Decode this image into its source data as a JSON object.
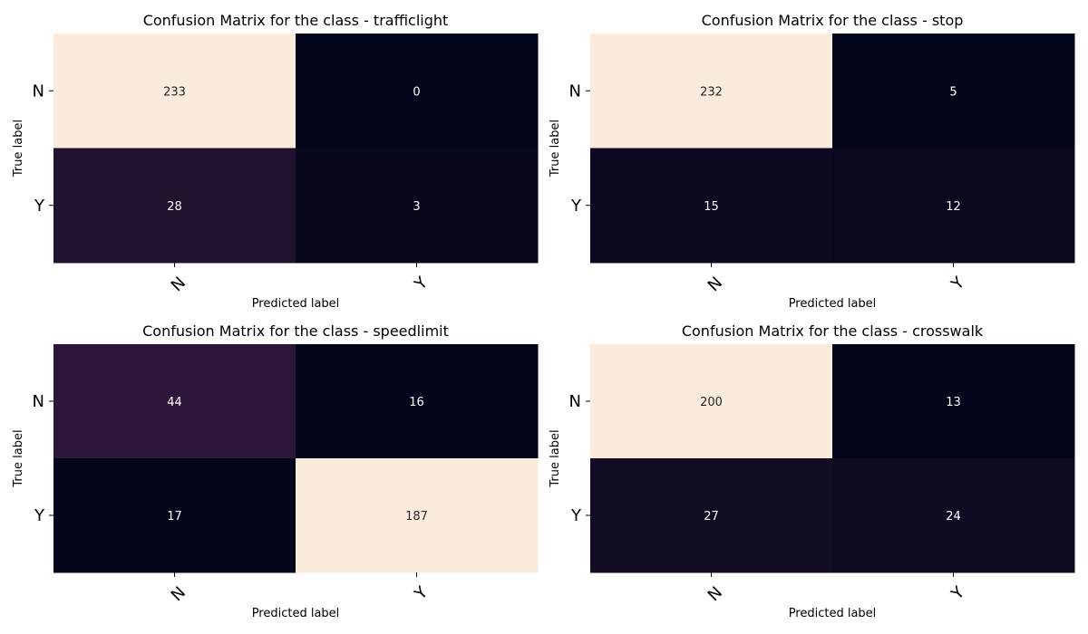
{
  "chart_data": [
    {
      "type": "heatmap",
      "title": "Confusion Matrix for the class - trafficlight",
      "xlabel": "Predicted label",
      "ylabel": "True label",
      "x_categories": [
        "N",
        "Y"
      ],
      "y_categories": [
        "N",
        "Y"
      ],
      "values": [
        [
          233,
          0
        ],
        [
          28,
          3
        ]
      ],
      "colorbar": false
    },
    {
      "type": "heatmap",
      "title": "Confusion Matrix for the class - stop",
      "xlabel": "Predicted label",
      "ylabel": "True label",
      "x_categories": [
        "N",
        "Y"
      ],
      "y_categories": [
        "N",
        "Y"
      ],
      "values": [
        [
          232,
          5
        ],
        [
          15,
          12
        ]
      ],
      "colorbar": false
    },
    {
      "type": "heatmap",
      "title": "Confusion Matrix for the class - speedlimit",
      "xlabel": "Predicted label",
      "ylabel": "True label",
      "x_categories": [
        "N",
        "Y"
      ],
      "y_categories": [
        "N",
        "Y"
      ],
      "values": [
        [
          44,
          16
        ],
        [
          17,
          187
        ]
      ],
      "colorbar": false
    },
    {
      "type": "heatmap",
      "title": "Confusion Matrix for the class - crosswalk",
      "xlabel": "Predicted label",
      "ylabel": "True label",
      "x_categories": [
        "N",
        "Y"
      ],
      "y_categories": [
        "N",
        "Y"
      ],
      "values": [
        [
          200,
          13
        ],
        [
          27,
          24
        ]
      ],
      "colorbar": false
    }
  ]
}
